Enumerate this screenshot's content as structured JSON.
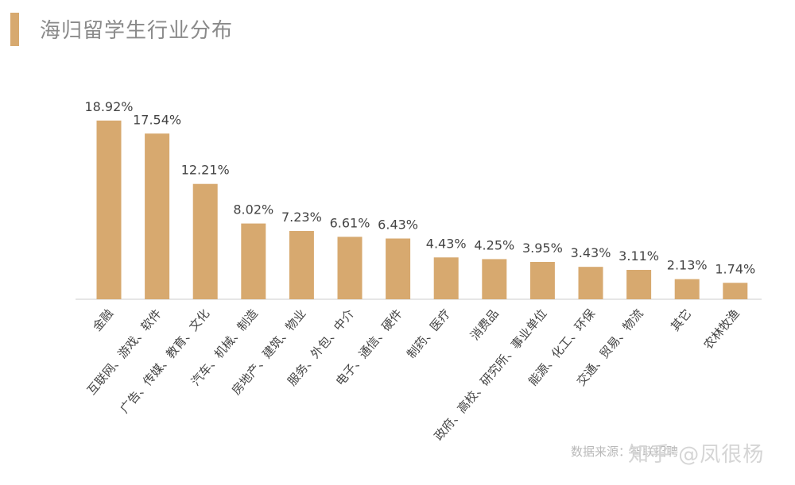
{
  "title": "海归留学生行业分布",
  "source_note": "数据来源：智联招聘",
  "watermark": "知乎 @凤很杨",
  "colors": {
    "bar": "#d7a96f",
    "title_accent": "#d7a96f",
    "axis": "#cccccc",
    "label": "#444444"
  },
  "chart_data": {
    "type": "bar",
    "title": "海归留学生行业分布",
    "xlabel": "",
    "ylabel": "",
    "ylim": [
      0,
      20
    ],
    "grid": false,
    "legend": "none",
    "categories": [
      "金融",
      "互联网、游戏、软件",
      "广告、传媒、教育、文化",
      "汽车、机械、制造",
      "房地产、建筑、物业",
      "服务、外包、中介",
      "电子、通信、硬件",
      "制药、医疗",
      "消费品",
      "政府、高校、研究所、事业单位",
      "能源、化工、环保",
      "交通、贸易、物流",
      "其它",
      "农林牧渔"
    ],
    "values": [
      18.92,
      17.54,
      12.21,
      8.02,
      7.23,
      6.61,
      6.43,
      4.43,
      4.25,
      3.95,
      3.43,
      3.11,
      2.13,
      1.74
    ],
    "data_labels": [
      "18.92%",
      "17.54%",
      "12.21%",
      "8.02%",
      "7.23%",
      "6.61%",
      "6.43%",
      "4.43%",
      "4.25%",
      "3.95%",
      "3.43%",
      "3.11%",
      "2.13%",
      "1.74%"
    ]
  }
}
